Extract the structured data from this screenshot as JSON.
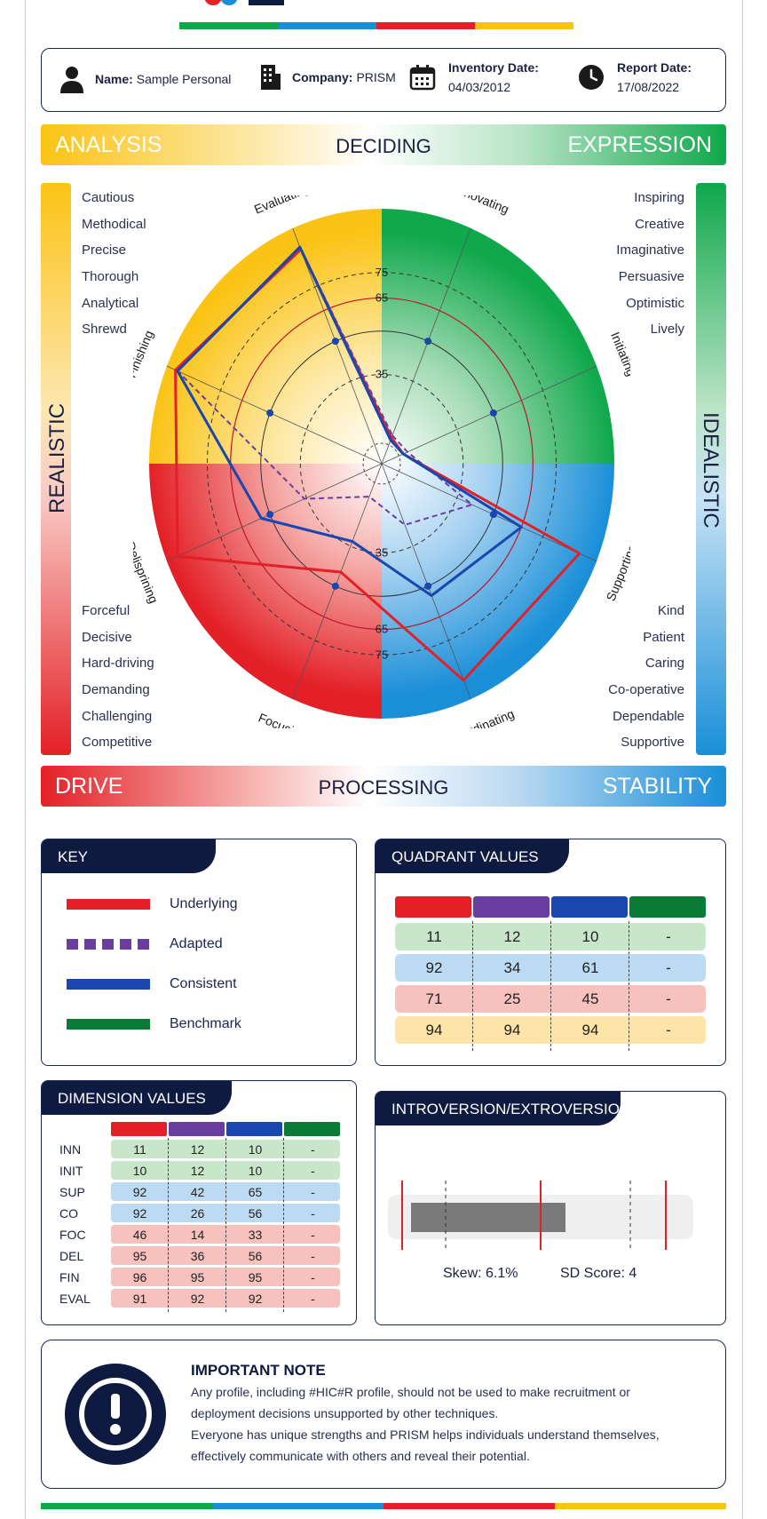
{
  "colors": {
    "yellow": "#fbc315",
    "green": "#0fa84b",
    "blue": "#1a8fd8",
    "red": "#e32027",
    "navy": "#0e1a3f",
    "purple": "#6a3ea1",
    "consistent": "#1a46b0",
    "benchmark": "#0a7a37"
  },
  "header": {
    "name_label": "Name:",
    "name_value": "Sample Personal",
    "company_label": "Company:",
    "company_value": "PRISM",
    "inventory_label": "Inventory Date:",
    "inventory_value": "04/03/2012",
    "report_label": "Report Date:",
    "report_value": "17/08/2022",
    "icons": [
      "person-icon",
      "building-icon",
      "calendar-icon",
      "clock-icon"
    ]
  },
  "top_band": {
    "left": "ANALYSIS",
    "middle": "DECIDING",
    "right": "EXPRESSION"
  },
  "bottom_band": {
    "left": "DRIVE",
    "middle": "PROCESSING",
    "right": "STABILITY"
  },
  "side_labels": {
    "left": "REALISTIC",
    "right": "IDEALISTIC"
  },
  "traits": {
    "top_left": [
      "Cautious",
      "Methodical",
      "Precise",
      "Thorough",
      "Analytical",
      "Shrewd"
    ],
    "top_right": [
      "Inspiring",
      "Creative",
      "Imaginative",
      "Persuasive",
      "Optimistic",
      "Lively"
    ],
    "bottom_left": [
      "Forceful",
      "Decisive",
      "Hard-driving",
      "Demanding",
      "Challenging",
      "Competitive"
    ],
    "bottom_right": [
      "Kind",
      "Patient",
      "Caring",
      "Co-operative",
      "Dependable",
      "Supportive"
    ]
  },
  "chart_data": {
    "type": "radar",
    "axes": [
      "Innovating",
      "Initiating",
      "Supporting",
      "Coordinating",
      "Focusing",
      "Delisprining",
      "Finishing",
      "Evaluating"
    ],
    "ring_labels": [
      "35",
      "65",
      "75"
    ],
    "series": [
      {
        "name": "Underlying",
        "values": [
          11,
          10,
          92,
          92,
          46,
          95,
          96,
          91
        ]
      },
      {
        "name": "Adapted",
        "values": [
          12,
          12,
          42,
          26,
          14,
          36,
          95,
          92
        ]
      },
      {
        "name": "Consistent",
        "values": [
          10,
          10,
          65,
          56,
          33,
          56,
          95,
          92
        ]
      }
    ]
  },
  "key": {
    "title": "KEY",
    "items": [
      {
        "label": "Underlying",
        "color": "#e32027",
        "style": "solid"
      },
      {
        "label": "Adapted",
        "color": "#6a3ea1",
        "style": "dashed"
      },
      {
        "label": "Consistent",
        "color": "#1a46b0",
        "style": "solid"
      },
      {
        "label": "Benchmark",
        "color": "#0a7a37",
        "style": "solid"
      }
    ]
  },
  "quadrant": {
    "title": "QUADRANT VALUES",
    "header_colors": [
      "#e32027",
      "#6a3ea1",
      "#1a46b0",
      "#0a7a37"
    ],
    "rows": [
      {
        "bg": "#c8e6c9",
        "values": [
          "11",
          "12",
          "10",
          "-"
        ]
      },
      {
        "bg": "#bcdaf2",
        "values": [
          "92",
          "34",
          "61",
          "-"
        ]
      },
      {
        "bg": "#f7c1bd",
        "values": [
          "71",
          "25",
          "45",
          "-"
        ]
      },
      {
        "bg": "#fde4a8",
        "values": [
          "94",
          "94",
          "94",
          "-"
        ]
      }
    ]
  },
  "dimension": {
    "title": "DIMENSION VALUES",
    "header_colors": [
      "#e32027",
      "#6a3ea1",
      "#1a46b0",
      "#0a7a37"
    ],
    "rows": [
      {
        "label": "INN",
        "bg": "#c8e6c9",
        "values": [
          "11",
          "12",
          "10",
          "-"
        ]
      },
      {
        "label": "INIT",
        "bg": "#c8e6c9",
        "values": [
          "10",
          "12",
          "10",
          "-"
        ]
      },
      {
        "label": "SUP",
        "bg": "#bcdaf2",
        "values": [
          "92",
          "42",
          "65",
          "-"
        ]
      },
      {
        "label": "CO",
        "bg": "#bcdaf2",
        "values": [
          "92",
          "26",
          "56",
          "-"
        ]
      },
      {
        "label": "FOC",
        "bg": "#f7c1bd",
        "values": [
          "46",
          "14",
          "33",
          "-"
        ]
      },
      {
        "label": "DEL",
        "bg": "#f7c1bd",
        "values": [
          "95",
          "36",
          "56",
          "-"
        ]
      },
      {
        "label": "FIN",
        "bg": "#f7c1bd",
        "values": [
          "96",
          "95",
          "95",
          "-"
        ]
      },
      {
        "label": "EVAL",
        "bg": "#f7c1bd",
        "values": [
          "91",
          "92",
          "92",
          "-"
        ]
      }
    ]
  },
  "introversion": {
    "title": "INTROVERSION/EXTROVERSION",
    "skew": "Skew: 6.1%",
    "sd_score": "SD Score: 4"
  },
  "note": {
    "title": "IMPORTANT NOTE",
    "line1": "Any profile, including #HIC#R profile, should not be used to make recruitment or",
    "line2": "deployment decisions unsupported by other techniques.",
    "line3": "Everyone has unique strengths and PRISM helps individuals understand themselves,",
    "line4": "effectively communicate with others and reveal their potential.",
    "icon": "exclamation-icon"
  }
}
